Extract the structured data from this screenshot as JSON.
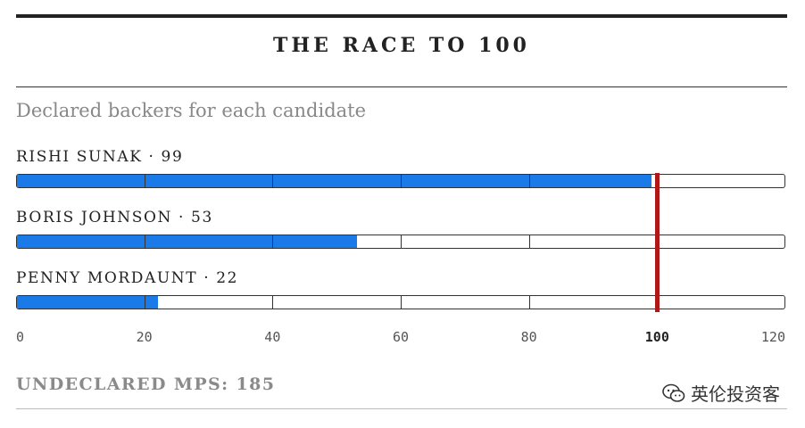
{
  "chart_data": {
    "type": "bar",
    "orientation": "horizontal",
    "title": "THE RACE TO 100",
    "subtitle": "Declared backers for each candidate",
    "categories": [
      "RISHI SUNAK",
      "BORIS JOHNSON",
      "PENNY MORDAUNT"
    ],
    "values": [
      99,
      53,
      22
    ],
    "labels": [
      "RISHI SUNAK · 99",
      "BORIS JOHNSON · 53",
      "PENNY MORDAUNT · 22"
    ],
    "xlim": [
      0,
      120
    ],
    "xticks": [
      "0",
      "20",
      "40",
      "60",
      "80",
      "100",
      "120"
    ],
    "threshold": 100,
    "bar_color": "#1a7ae8",
    "threshold_color": "#b01818",
    "footnote": "UNDECLARED MPS: 185"
  },
  "watermark": {
    "icon": "wechat-icon",
    "text": "英伦投资客"
  }
}
